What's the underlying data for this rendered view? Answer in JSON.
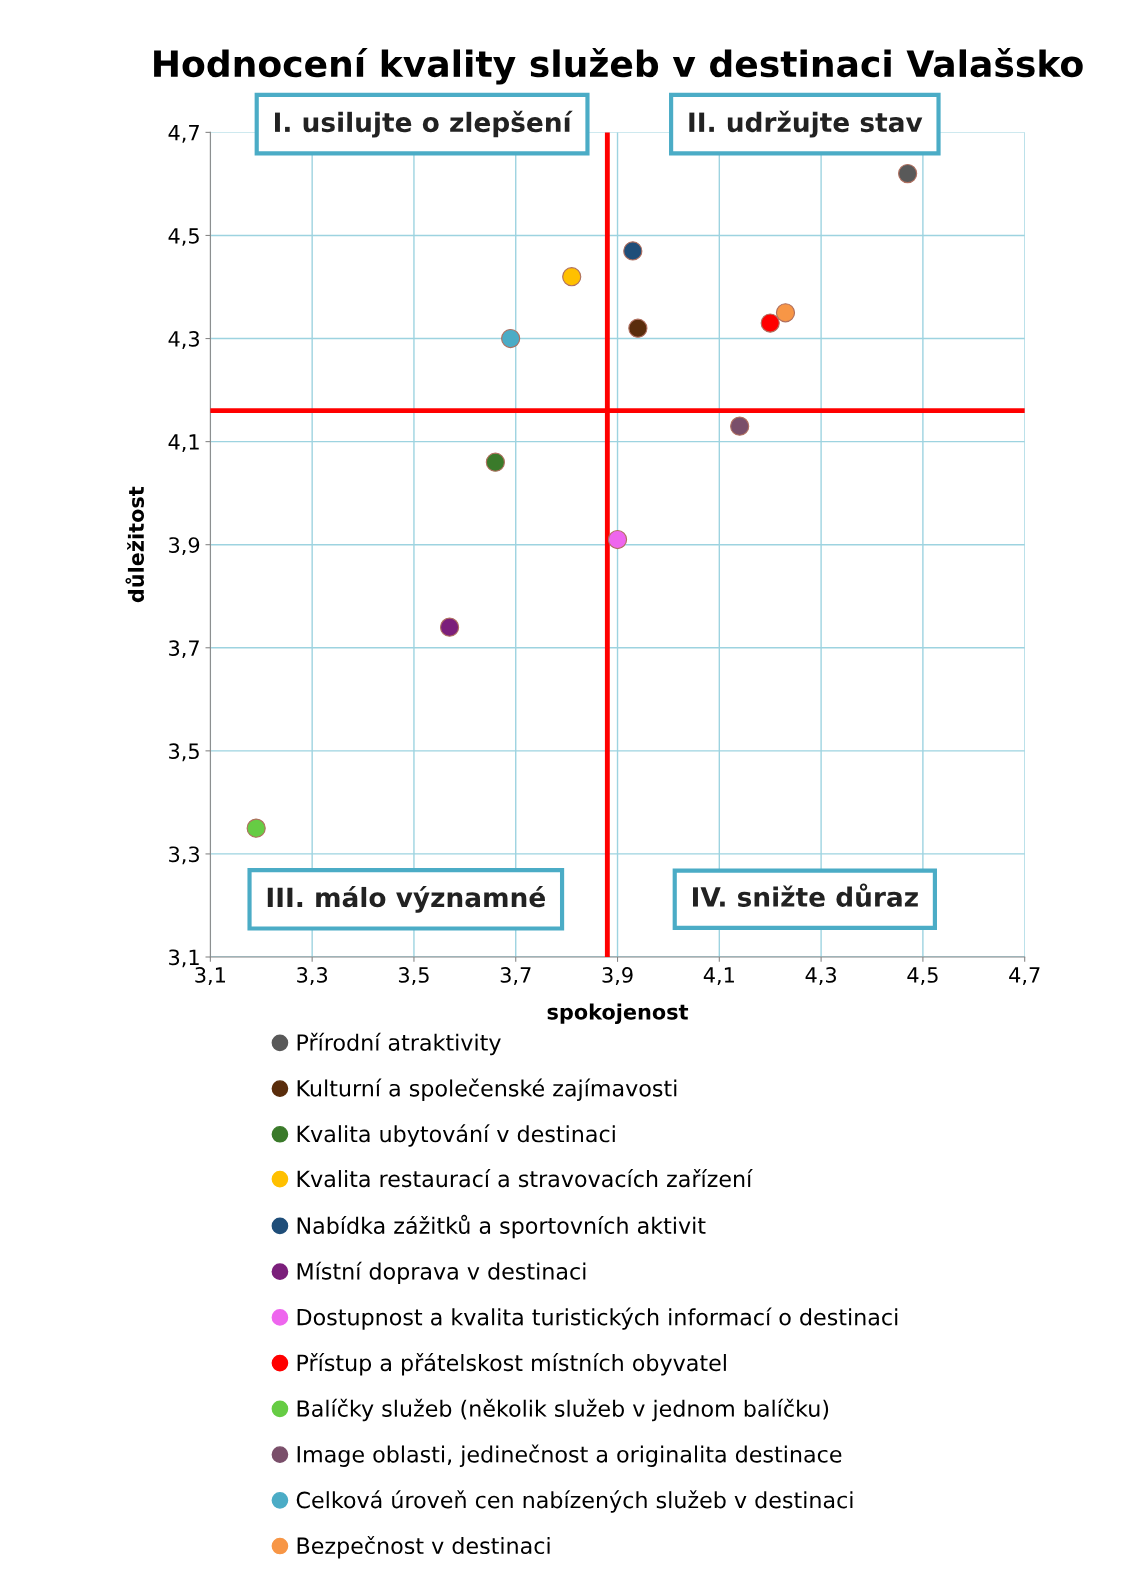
{
  "chart_data": {
    "type": "scatter",
    "title": "Hodnocení kvality služeb v destinaci Valašsko",
    "xlabel": "spokojenost",
    "ylabel": "důležitost",
    "xlim": [
      3.1,
      4.7
    ],
    "ylim": [
      3.1,
      4.7
    ],
    "xticks": [
      {
        "value": 3.1,
        "label": "3,1"
      },
      {
        "value": 3.3,
        "label": "3,3"
      },
      {
        "value": 3.5,
        "label": "3,5"
      },
      {
        "value": 3.7,
        "label": "3,7"
      },
      {
        "value": 3.9,
        "label": "3,9"
      },
      {
        "value": 4.1,
        "label": "4,1"
      },
      {
        "value": 4.3,
        "label": "4,3"
      },
      {
        "value": 4.5,
        "label": "4,5"
      },
      {
        "value": 4.7,
        "label": "4,7"
      }
    ],
    "yticks": [
      {
        "value": 3.1,
        "label": "3,1"
      },
      {
        "value": 3.3,
        "label": "3,3"
      },
      {
        "value": 3.5,
        "label": "3,5"
      },
      {
        "value": 3.7,
        "label": "3,7"
      },
      {
        "value": 3.9,
        "label": "3,9"
      },
      {
        "value": 4.1,
        "label": "4,1"
      },
      {
        "value": 4.3,
        "label": "4,3"
      },
      {
        "value": 4.5,
        "label": "4,5"
      },
      {
        "value": 4.7,
        "label": "4,7"
      }
    ],
    "grid": true,
    "legend": "bottom",
    "marker": "circle",
    "series": [
      {
        "name": "Přírodní atraktivity",
        "color": "#595959",
        "x": [
          4.47
        ],
        "values": [
          4.62
        ]
      },
      {
        "name": "Kulturní a společenské zajímavosti",
        "color": "#5a2d0c",
        "x": [
          3.94
        ],
        "values": [
          4.32
        ]
      },
      {
        "name": "Kvalita ubytování v destinaci",
        "color": "#3a7a2a",
        "x": [
          3.66
        ],
        "values": [
          4.06
        ]
      },
      {
        "name": "Kvalita restaurací a stravovacích zařízení",
        "color": "#ffc000",
        "x": [
          3.81
        ],
        "values": [
          4.42
        ]
      },
      {
        "name": "Nabídka zážitků a sportovních aktivit",
        "color": "#1f4e79",
        "x": [
          3.93
        ],
        "values": [
          4.47
        ]
      },
      {
        "name": "Místní doprava v destinaci",
        "color": "#7b1f7b",
        "x": [
          3.57
        ],
        "values": [
          3.74
        ]
      },
      {
        "name": "Dostupnost a kvalita turistických informací o destinaci",
        "color": "#ee66ee",
        "x": [
          3.9
        ],
        "values": [
          3.91
        ]
      },
      {
        "name": "Přístup a přátelskost místních obyvatel",
        "color": "#ff0000",
        "x": [
          4.2
        ],
        "values": [
          4.33
        ]
      },
      {
        "name": "Balíčky služeb (několik služeb v jednom balíčku)",
        "color": "#66cc44",
        "x": [
          3.19
        ],
        "values": [
          3.35
        ]
      },
      {
        "name": "Image oblasti, jedinečnost a originalita destinace",
        "color": "#7a4f6a",
        "x": [
          4.14
        ],
        "values": [
          4.13
        ]
      },
      {
        "name": "Celková úroveň cen nabízených služeb v destinaci",
        "color": "#4bacc6",
        "x": [
          3.69
        ],
        "values": [
          4.3
        ]
      },
      {
        "name": "Bezpečnost v destinaci",
        "color": "#f79646",
        "x": [
          4.23
        ],
        "values": [
          4.35
        ]
      }
    ],
    "ref_lines": [
      {
        "axis": "x",
        "value": 3.88,
        "color": "#ff0000"
      },
      {
        "axis": "y",
        "value": 4.16,
        "color": "#ff0000"
      }
    ],
    "annotations": [
      "I. usilujte o zlepšení",
      "II. udržujte stav",
      "III. málo významné",
      "IV. snižte důraz"
    ]
  }
}
